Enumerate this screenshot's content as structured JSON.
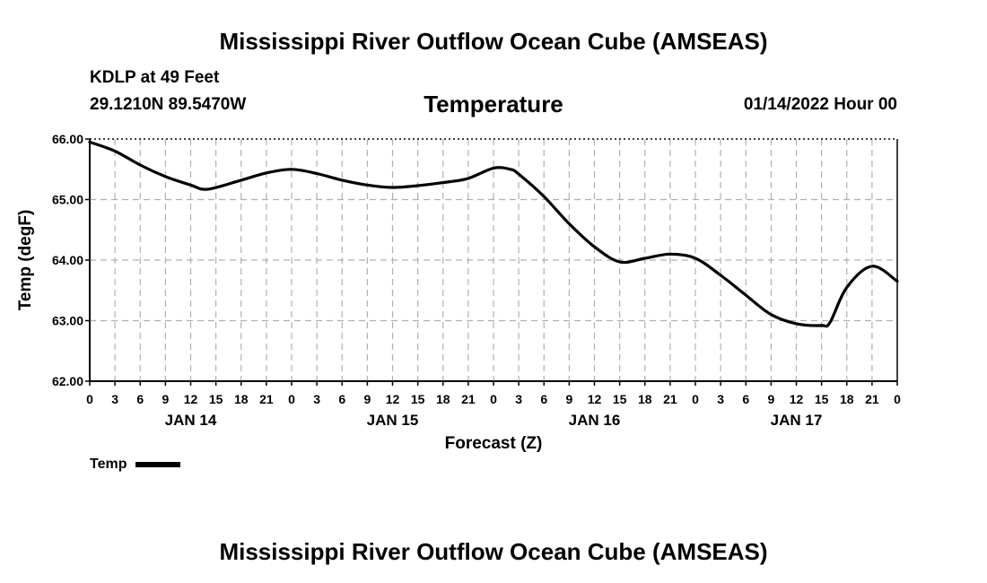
{
  "header": {
    "title": "Mississippi River Outflow Ocean Cube (AMSEAS)",
    "station": "KDLP at 49 Feet",
    "coordinates": "29.1210N  89.5470W",
    "variable": "Temperature",
    "datetime": "01/14/2022 Hour 00"
  },
  "footer": {
    "title": "Mississippi River Outflow Ocean Cube (AMSEAS)"
  },
  "legend": {
    "label": "Temp"
  },
  "colors": {
    "line": "#000000",
    "grid": "#b0b0b0"
  },
  "chart_data": {
    "type": "line",
    "title": "Temperature",
    "xlabel": "Forecast (Z)",
    "ylabel": "Temp (degF)",
    "ylim": [
      62,
      66
    ],
    "xlim": [
      0,
      96
    ],
    "y_ticks": [
      "62.00",
      "63.00",
      "64.00",
      "65.00",
      "66.00"
    ],
    "x_tick_hours": [
      0,
      3,
      6,
      9,
      12,
      15,
      18,
      21,
      24,
      27,
      30,
      33,
      36,
      39,
      42,
      45,
      48,
      51,
      54,
      57,
      60,
      63,
      66,
      69,
      72,
      75,
      78,
      81,
      84,
      87,
      90,
      93,
      96
    ],
    "x_tick_labels": [
      "0",
      "3",
      "6",
      "9",
      "12",
      "15",
      "18",
      "21",
      "0",
      "3",
      "6",
      "9",
      "12",
      "15",
      "18",
      "21",
      "0",
      "3",
      "6",
      "9",
      "12",
      "15",
      "18",
      "21",
      "0",
      "3",
      "6",
      "9",
      "12",
      "15",
      "18",
      "21",
      "0"
    ],
    "day_labels": [
      {
        "hour": 12,
        "label": "JAN 14"
      },
      {
        "hour": 36,
        "label": "JAN 15"
      },
      {
        "hour": 60,
        "label": "JAN 16"
      },
      {
        "hour": 84,
        "label": "JAN 17"
      }
    ],
    "grid": true,
    "series": [
      {
        "name": "Temp",
        "x": [
          0,
          3,
          6,
          9,
          12,
          14,
          18,
          21,
          24,
          27,
          30,
          33,
          36,
          39,
          42,
          45,
          48,
          50,
          51,
          54,
          57,
          60,
          63,
          66,
          69,
          72,
          75,
          78,
          81,
          84,
          87,
          88,
          90,
          93,
          96
        ],
        "y": [
          65.95,
          65.8,
          65.57,
          65.38,
          65.24,
          65.17,
          65.32,
          65.44,
          65.5,
          65.43,
          65.32,
          65.24,
          65.2,
          65.23,
          65.28,
          65.35,
          65.52,
          65.5,
          65.42,
          65.05,
          64.6,
          64.22,
          63.97,
          64.03,
          64.1,
          64.03,
          63.75,
          63.42,
          63.1,
          62.95,
          62.92,
          62.97,
          63.55,
          63.9,
          63.65
        ]
      }
    ]
  }
}
